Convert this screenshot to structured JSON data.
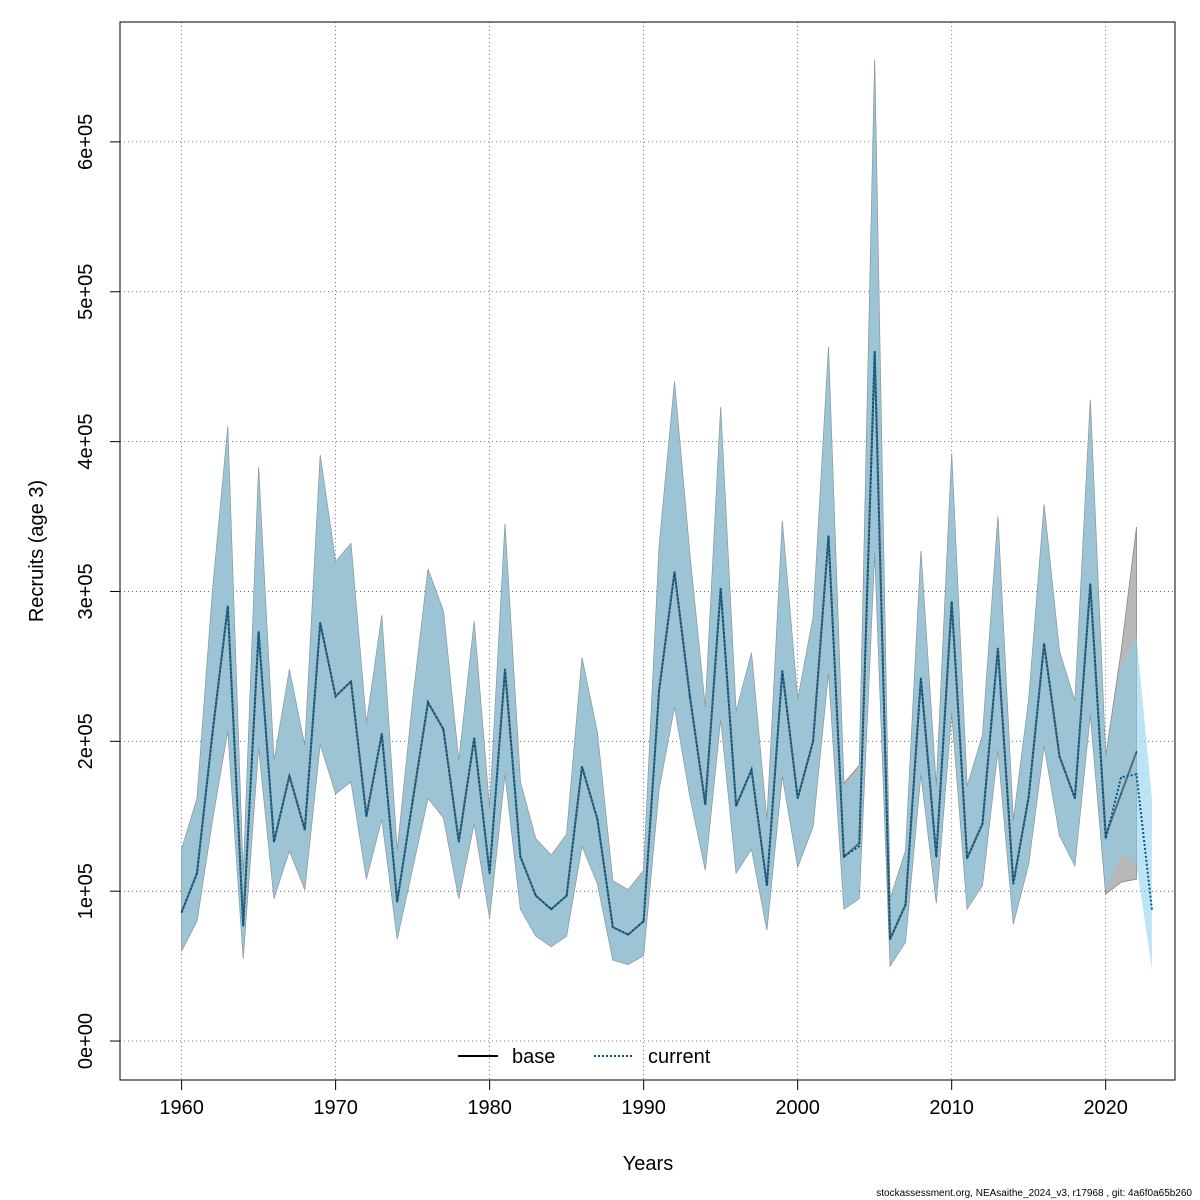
{
  "chart_data": {
    "type": "line",
    "title": "",
    "xlabel": "Years",
    "ylabel": "Recruits (age 3)",
    "xlim": [
      1956,
      2024.5
    ],
    "ylim": [
      -26000,
      680000
    ],
    "x_ticks": [
      1960,
      1970,
      1980,
      1990,
      2000,
      2010,
      2020
    ],
    "x_tick_labels": [
      "1960",
      "1970",
      "1980",
      "1990",
      "2000",
      "2010",
      "2020"
    ],
    "y_ticks": [
      0,
      100000,
      200000,
      300000,
      400000,
      500000,
      600000
    ],
    "y_tick_labels": [
      "0e+00",
      "1e+05",
      "2e+05",
      "3e+05",
      "4e+05",
      "5e+05",
      "6e+05"
    ],
    "grid": true,
    "legend_position": "bottom-center",
    "years": [
      1960,
      1961,
      1962,
      1963,
      1964,
      1965,
      1966,
      1967,
      1968,
      1969,
      1970,
      1971,
      1972,
      1973,
      1974,
      1975,
      1976,
      1977,
      1978,
      1979,
      1980,
      1981,
      1982,
      1983,
      1984,
      1985,
      1986,
      1987,
      1988,
      1989,
      1990,
      1991,
      1992,
      1993,
      1994,
      1995,
      1996,
      1997,
      1998,
      1999,
      2000,
      2001,
      2002,
      2003,
      2004,
      2005,
      2006,
      2007,
      2008,
      2009,
      2010,
      2011,
      2012,
      2013,
      2014,
      2015,
      2016,
      2017,
      2018,
      2019,
      2020,
      2021,
      2022,
      2023
    ],
    "series": [
      {
        "name": "base",
        "color": "#000000",
        "line_style": "solid",
        "band_color": "#b0b0b0",
        "values": [
          86000,
          112000,
          205000,
          290000,
          77000,
          273000,
          133000,
          177000,
          141000,
          279000,
          230000,
          240000,
          150000,
          205000,
          93000,
          160000,
          226000,
          208000,
          133000,
          202000,
          112000,
          248000,
          123000,
          97000,
          88000,
          97000,
          183000,
          148000,
          76000,
          71000,
          80000,
          234000,
          313000,
          230000,
          158000,
          302000,
          157000,
          181000,
          104000,
          247000,
          162000,
          200000,
          337000,
          123000,
          132000,
          460000,
          68000,
          91000,
          242000,
          123000,
          293000,
          122000,
          145000,
          262000,
          105000,
          163000,
          265000,
          190000,
          162000,
          305000,
          137000,
          165000,
          193000
        ],
        "upper": [
          128000,
          162000,
          300000,
          410000,
          110000,
          383000,
          187000,
          248000,
          197000,
          391000,
          320000,
          332000,
          212000,
          284000,
          127000,
          227000,
          315000,
          287000,
          187000,
          280000,
          155000,
          345000,
          173000,
          135000,
          124000,
          138000,
          256000,
          206000,
          107000,
          101000,
          114000,
          330000,
          440000,
          325000,
          223000,
          423000,
          220000,
          259000,
          147000,
          347000,
          228000,
          283000,
          463000,
          172000,
          184000,
          655000,
          95000,
          127000,
          327000,
          170000,
          392000,
          170000,
          204000,
          350000,
          147000,
          228000,
          358000,
          260000,
          227000,
          428000,
          190000,
          260000,
          343000
        ],
        "lower": [
          60000,
          80000,
          147000,
          207000,
          55000,
          196000,
          95000,
          127000,
          101000,
          198000,
          165000,
          173000,
          108000,
          148000,
          68000,
          115000,
          162000,
          149000,
          95000,
          145000,
          82000,
          178000,
          88000,
          70000,
          63000,
          70000,
          130000,
          105000,
          54000,
          51000,
          57000,
          168000,
          223000,
          163000,
          114000,
          215000,
          112000,
          128000,
          74000,
          177000,
          116000,
          143000,
          246000,
          88000,
          95000,
          326000,
          50000,
          66000,
          178000,
          92000,
          219000,
          88000,
          104000,
          194000,
          78000,
          118000,
          197000,
          137000,
          117000,
          218000,
          98000,
          106000,
          108000
        ]
      },
      {
        "name": "current",
        "color": "#00598a",
        "line_style": "dotted",
        "band_color": "#87ceeb",
        "values": [
          86000,
          112000,
          205000,
          290000,
          77000,
          273000,
          133000,
          177000,
          141000,
          279000,
          230000,
          240000,
          150000,
          205000,
          93000,
          160000,
          226000,
          208000,
          133000,
          202000,
          112000,
          248000,
          123000,
          97000,
          88000,
          97000,
          183000,
          148000,
          76000,
          71000,
          80000,
          234000,
          313000,
          230000,
          158000,
          302000,
          157000,
          181000,
          104000,
          247000,
          162000,
          200000,
          337000,
          123000,
          130000,
          460000,
          68000,
          91000,
          242000,
          123000,
          293000,
          122000,
          145000,
          262000,
          105000,
          163000,
          265000,
          190000,
          162000,
          305000,
          135000,
          176000,
          178000,
          88000
        ],
        "upper": [
          128000,
          162000,
          300000,
          410000,
          110000,
          383000,
          187000,
          248000,
          197000,
          391000,
          320000,
          332000,
          212000,
          284000,
          127000,
          227000,
          315000,
          287000,
          187000,
          280000,
          155000,
          345000,
          173000,
          135000,
          124000,
          138000,
          256000,
          206000,
          107000,
          101000,
          114000,
          330000,
          440000,
          325000,
          223000,
          423000,
          220000,
          259000,
          147000,
          347000,
          228000,
          283000,
          463000,
          170000,
          180000,
          655000,
          95000,
          127000,
          327000,
          170000,
          392000,
          170000,
          204000,
          350000,
          147000,
          228000,
          358000,
          260000,
          227000,
          428000,
          190000,
          250000,
          270000,
          162000
        ],
        "lower": [
          60000,
          80000,
          147000,
          207000,
          55000,
          196000,
          95000,
          127000,
          101000,
          198000,
          165000,
          173000,
          108000,
          148000,
          68000,
          115000,
          162000,
          149000,
          95000,
          145000,
          82000,
          178000,
          88000,
          70000,
          63000,
          70000,
          130000,
          105000,
          54000,
          51000,
          57000,
          168000,
          223000,
          163000,
          114000,
          215000,
          112000,
          128000,
          74000,
          177000,
          116000,
          143000,
          246000,
          88000,
          95000,
          326000,
          50000,
          66000,
          178000,
          92000,
          219000,
          88000,
          104000,
          194000,
          78000,
          118000,
          197000,
          137000,
          117000,
          218000,
          100000,
          125000,
          118000,
          48000
        ]
      }
    ],
    "legend": [
      {
        "label": "base",
        "color": "#000000",
        "line_style": "solid"
      },
      {
        "label": "current",
        "color": "#00598a",
        "line_style": "dotted"
      }
    ]
  },
  "footer": {
    "note": "stockassessment.org, NEAsaithe_2024_v3, r17968 , git: 4a6f0a65b260"
  }
}
